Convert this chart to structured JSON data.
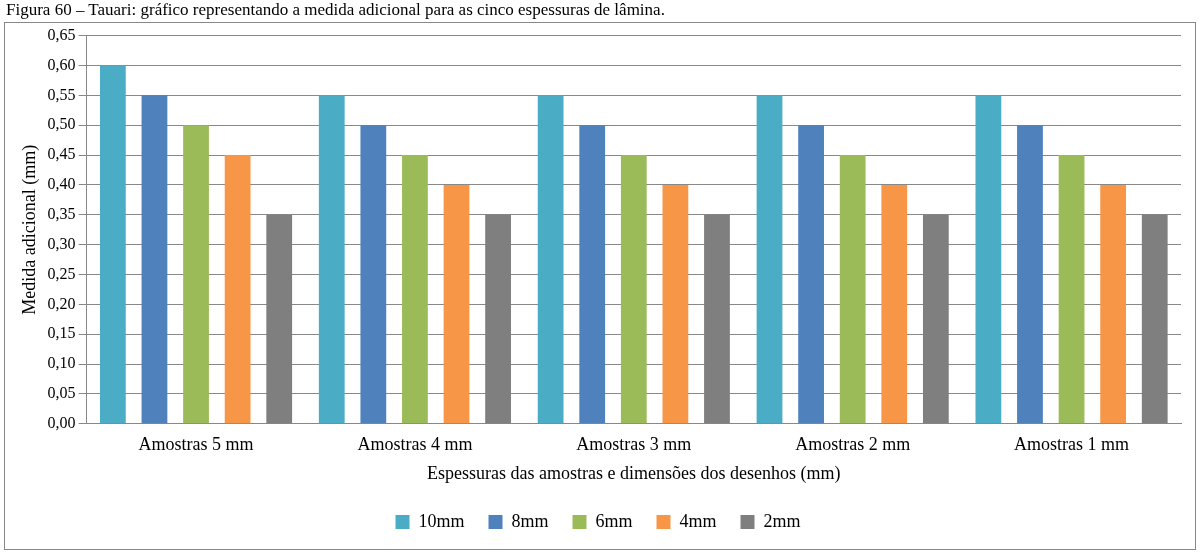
{
  "chart_data": {
    "type": "bar",
    "title": "Figura 60 – Tauari: gráfico representando a medida adicional para as cinco espessuras de lâmina.",
    "xlabel": "Espessuras das amostras e dimensões dos desenhos (mm)",
    "ylabel": "Medida adicional (mm)",
    "categories": [
      "Amostras 5 mm",
      "Amostras 4 mm",
      "Amostras 3 mm",
      "Amostras 2 mm",
      "Amostras 1 mm"
    ],
    "series": [
      {
        "name": "10mm",
        "color": "#4bacc6",
        "values": [
          0.6,
          0.55,
          0.55,
          0.55,
          0.55
        ]
      },
      {
        "name": "8mm",
        "color": "#4f81bd",
        "values": [
          0.55,
          0.5,
          0.5,
          0.5,
          0.5
        ]
      },
      {
        "name": "6mm",
        "color": "#9bbb59",
        "values": [
          0.5,
          0.45,
          0.45,
          0.45,
          0.45
        ]
      },
      {
        "name": "4mm",
        "color": "#f79646",
        "values": [
          0.45,
          0.4,
          0.4,
          0.4,
          0.4
        ]
      },
      {
        "name": "2mm",
        "color": "#7f7f7f",
        "values": [
          0.35,
          0.35,
          0.35,
          0.35,
          0.35
        ]
      }
    ],
    "ylim": [
      0,
      0.65
    ],
    "yticks": [
      {
        "value": 0,
        "label": "0,00"
      },
      {
        "value": 0.05,
        "label": "0,05"
      },
      {
        "value": 0.1,
        "label": "0,10"
      },
      {
        "value": 0.15,
        "label": "0,15"
      },
      {
        "value": 0.2,
        "label": "0,20"
      },
      {
        "value": 0.25,
        "label": "0,25"
      },
      {
        "value": 0.3,
        "label": "0,30"
      },
      {
        "value": 0.35,
        "label": "0,35"
      },
      {
        "value": 0.4,
        "label": "0,40"
      },
      {
        "value": 0.45,
        "label": "0,45"
      },
      {
        "value": 0.5,
        "label": "0,50"
      },
      {
        "value": 0.55,
        "label": "0,55"
      },
      {
        "value": 0.6,
        "label": "0,60"
      },
      {
        "value": 0.65,
        "label": "0,65"
      }
    ],
    "grid": "y",
    "legend": "bottom"
  }
}
